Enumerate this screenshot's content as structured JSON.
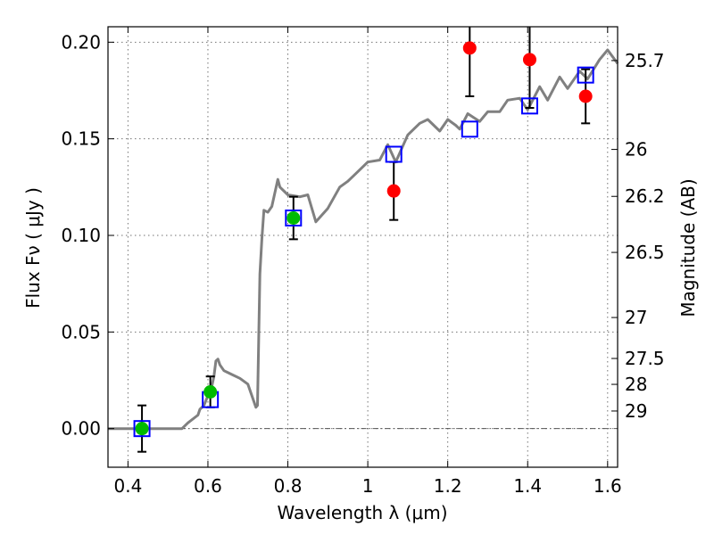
{
  "chart_data": {
    "type": "scatter",
    "xlabel": "Wavelength  λ (μm)",
    "ylabel": "Flux  Fν  ( μJy )",
    "ylabel_right": "Magnitude (AB)",
    "xlim": [
      0.35,
      1.625
    ],
    "ylim": [
      -0.02,
      0.208
    ],
    "grid": true,
    "x_ticks": [
      0.4,
      0.6,
      0.8,
      1.0,
      1.2,
      1.4,
      1.6
    ],
    "x_tick_labels": [
      "0.4",
      "0.6",
      "0.8",
      "1",
      "1.2",
      "1.4",
      "1.6"
    ],
    "y_ticks": [
      0.0,
      0.05,
      0.1,
      0.15,
      0.2
    ],
    "y_tick_labels": [
      "0.00",
      "0.05",
      "0.10",
      "0.15",
      "0.20"
    ],
    "mag_ticks": [
      {
        "label": "25.7",
        "flux": 0.1905
      },
      {
        "label": "26",
        "flux": 0.1445
      },
      {
        "label": "26.2",
        "flux": 0.1202
      },
      {
        "label": "26.5",
        "flux": 0.0912
      },
      {
        "label": "27",
        "flux": 0.0575
      },
      {
        "label": "27.5",
        "flux": 0.0363
      },
      {
        "label": "28",
        "flux": 0.0229
      },
      {
        "label": "29",
        "flux": 0.0091
      }
    ],
    "zero_line": 0.0,
    "colors": {
      "model": "#808080",
      "detection": "#ff0000",
      "optical": "#00bb00",
      "synthetic": "#0000ff",
      "errorbar": "#000000",
      "zero_line": "#555555"
    },
    "series": [
      {
        "kind": "model_sed",
        "x": [
          0.35,
          0.4,
          0.45,
          0.5,
          0.535,
          0.55,
          0.575,
          0.58,
          0.59,
          0.61,
          0.615,
          0.62,
          0.625,
          0.63,
          0.64,
          0.66,
          0.68,
          0.7,
          0.72,
          0.724,
          0.73,
          0.735,
          0.74,
          0.75,
          0.76,
          0.775,
          0.78,
          0.8,
          0.83,
          0.85,
          0.87,
          0.9,
          0.93,
          0.95,
          0.97,
          1.0,
          1.03,
          1.05,
          1.07,
          1.1,
          1.13,
          1.15,
          1.18,
          1.2,
          1.22,
          1.23,
          1.25,
          1.28,
          1.3,
          1.33,
          1.35,
          1.38,
          1.4,
          1.43,
          1.45,
          1.48,
          1.5,
          1.53,
          1.55,
          1.58,
          1.6,
          1.625
        ],
        "y": [
          0.0,
          0.0,
          0.0,
          0.0,
          0.0,
          0.003,
          0.007,
          0.01,
          0.012,
          0.022,
          0.027,
          0.035,
          0.036,
          0.033,
          0.03,
          0.028,
          0.026,
          0.023,
          0.011,
          0.012,
          0.08,
          0.098,
          0.113,
          0.112,
          0.115,
          0.129,
          0.125,
          0.121,
          0.12,
          0.121,
          0.107,
          0.114,
          0.125,
          0.128,
          0.132,
          0.138,
          0.139,
          0.147,
          0.138,
          0.152,
          0.158,
          0.16,
          0.154,
          0.16,
          0.157,
          0.155,
          0.163,
          0.159,
          0.164,
          0.164,
          0.17,
          0.171,
          0.165,
          0.177,
          0.17,
          0.182,
          0.176,
          0.185,
          0.181,
          0.191,
          0.196,
          0.189
        ]
      },
      {
        "kind": "optical_detections",
        "points": [
          {
            "x": 0.435,
            "y": 0.0,
            "err": 0.012
          },
          {
            "x": 0.606,
            "y": 0.019,
            "err": 0.008
          },
          {
            "x": 0.814,
            "y": 0.109,
            "err": 0.011
          }
        ]
      },
      {
        "kind": "nir_detections",
        "points": [
          {
            "x": 1.065,
            "y": 0.123,
            "err": 0.015
          },
          {
            "x": 1.255,
            "y": 0.197,
            "err": 0.025
          },
          {
            "x": 1.405,
            "y": 0.191,
            "err": 0.025
          },
          {
            "x": 1.545,
            "y": 0.172,
            "err": 0.014
          }
        ]
      },
      {
        "kind": "synthetic_photometry",
        "points": [
          {
            "x": 0.435,
            "y": 0.0
          },
          {
            "x": 0.606,
            "y": 0.015
          },
          {
            "x": 0.814,
            "y": 0.109
          },
          {
            "x": 1.065,
            "y": 0.142
          },
          {
            "x": 1.255,
            "y": 0.155
          },
          {
            "x": 1.405,
            "y": 0.167
          },
          {
            "x": 1.545,
            "y": 0.183
          }
        ]
      }
    ]
  }
}
